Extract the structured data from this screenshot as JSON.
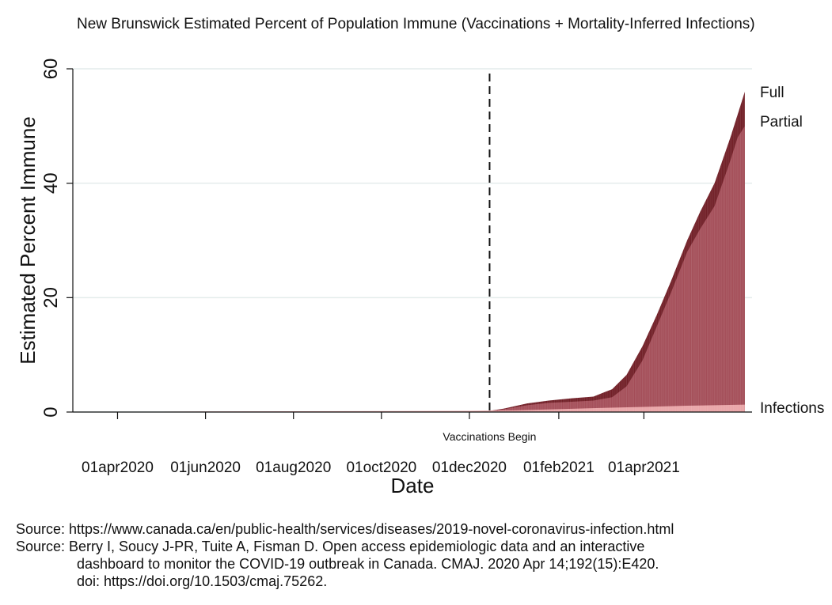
{
  "chart_data": {
    "type": "area",
    "title": "New Brunswick Estimated Percent of Population Immune (Vaccinations + Mortality-Inferred Infections)",
    "xlabel": "Date",
    "ylabel": "Estimated Percent Immune",
    "ylim": [
      0,
      60
    ],
    "yticks": [
      0,
      20,
      40,
      60
    ],
    "xlim": [
      "2020-03-01",
      "2021-06-15"
    ],
    "xticks": [
      "2020-04-01",
      "2020-06-01",
      "2020-08-01",
      "2020-10-01",
      "2020-12-01",
      "2021-02-01",
      "2021-04-01"
    ],
    "xtick_labels": [
      "01apr2020",
      "01jun2020",
      "01aug2020",
      "01oct2020",
      "01dec2020",
      "01feb2021",
      "01apr2021"
    ],
    "grid": true,
    "vline": {
      "date": "2020-12-15",
      "label": "Vaccinations Begin"
    },
    "series": [
      {
        "name": "Infections",
        "color": "#e9a3a6",
        "x": [
          "2020-03-01",
          "2020-06-01",
          "2020-12-01",
          "2021-01-01",
          "2021-02-01",
          "2021-03-01",
          "2021-04-01",
          "2021-05-01",
          "2021-06-10"
        ],
        "values": [
          0,
          0.1,
          0.2,
          0.3,
          0.5,
          0.7,
          0.9,
          1.1,
          1.3
        ]
      },
      {
        "name": "Partial",
        "color": "#a24a55",
        "x": [
          "2020-12-15",
          "2020-12-25",
          "2021-01-10",
          "2021-01-25",
          "2021-02-10",
          "2021-02-25",
          "2021-03-10",
          "2021-03-20",
          "2021-03-31",
          "2021-04-10",
          "2021-04-20",
          "2021-05-01",
          "2021-05-10",
          "2021-05-20",
          "2021-05-31",
          "2021-06-05",
          "2021-06-10"
        ],
        "values": [
          0.2,
          0.5,
          1.2,
          1.6,
          1.8,
          2.0,
          2.6,
          4.5,
          9.0,
          15.0,
          21.0,
          28.0,
          32.0,
          36.0,
          44.0,
          48.0,
          50.0
        ]
      },
      {
        "name": "Full",
        "color": "#6e1a22",
        "x": [
          "2020-12-15",
          "2020-12-25",
          "2021-01-10",
          "2021-01-25",
          "2021-02-10",
          "2021-02-25",
          "2021-03-10",
          "2021-03-20",
          "2021-03-31",
          "2021-04-10",
          "2021-04-20",
          "2021-05-01",
          "2021-05-10",
          "2021-05-20",
          "2021-05-31",
          "2021-06-05",
          "2021-06-10"
        ],
        "values": [
          0.2,
          0.6,
          1.5,
          2.0,
          2.4,
          2.7,
          4.0,
          6.5,
          11.5,
          17.0,
          23.0,
          30.0,
          35.0,
          40.0,
          48.0,
          52.0,
          56.0
        ]
      }
    ]
  },
  "sources": [
    "Source: https://www.canada.ca/en/public-health/services/diseases/2019-novel-coronavirus-infection.html",
    "Source: Berry I, Soucy J-PR, Tuite A, Fisman D. Open access epidemiologic data and an interactive",
    "dashboard to monitor the COVID-19 outbreak in Canada. CMAJ. 2020 Apr 14;192(15):E420.",
    "doi: https://doi.org/10.1503/cmaj.75262."
  ]
}
